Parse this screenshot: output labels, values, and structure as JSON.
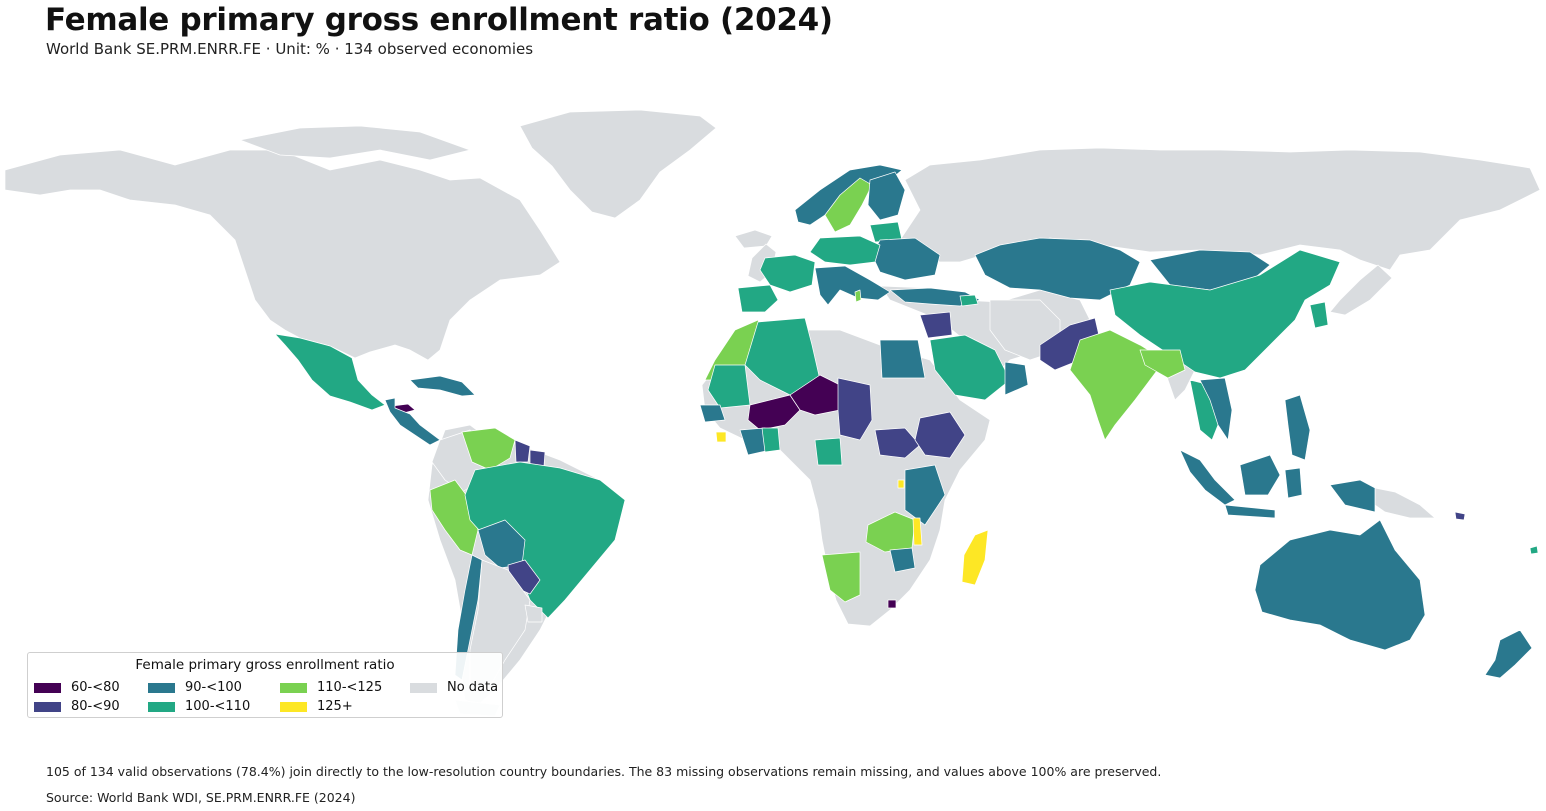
{
  "title": "Female primary gross enrollment ratio (2024)",
  "subtitle": "World Bank SE.PRM.ENRR.FE · Unit: % · 134 observed economies",
  "colors": {
    "no_data": "#d9dcdf",
    "border": "#ffffff",
    "ocean": "#ffffff"
  },
  "legend": {
    "title": "Female primary gross enrollment ratio",
    "items": [
      {
        "label": "60-<80",
        "color": "#440154"
      },
      {
        "label": "80-<90",
        "color": "#414487"
      },
      {
        "label": "90-<100",
        "color": "#2a788e"
      },
      {
        "label": "100-<110",
        "color": "#22a884"
      },
      {
        "label": "110-<125",
        "color": "#7ad151"
      },
      {
        "label": "125+",
        "color": "#fde725"
      },
      {
        "label": "No data",
        "color": "#d9dcdf"
      }
    ]
  },
  "note": "105 of 134 valid observations (78.4%) join directly to the low-resolution country boundaries. The 83 missing observations remain missing, and values above 100% are preserved.",
  "source": "Source: World Bank WDI, SE.PRM.ENRR.FE (2024)"
}
